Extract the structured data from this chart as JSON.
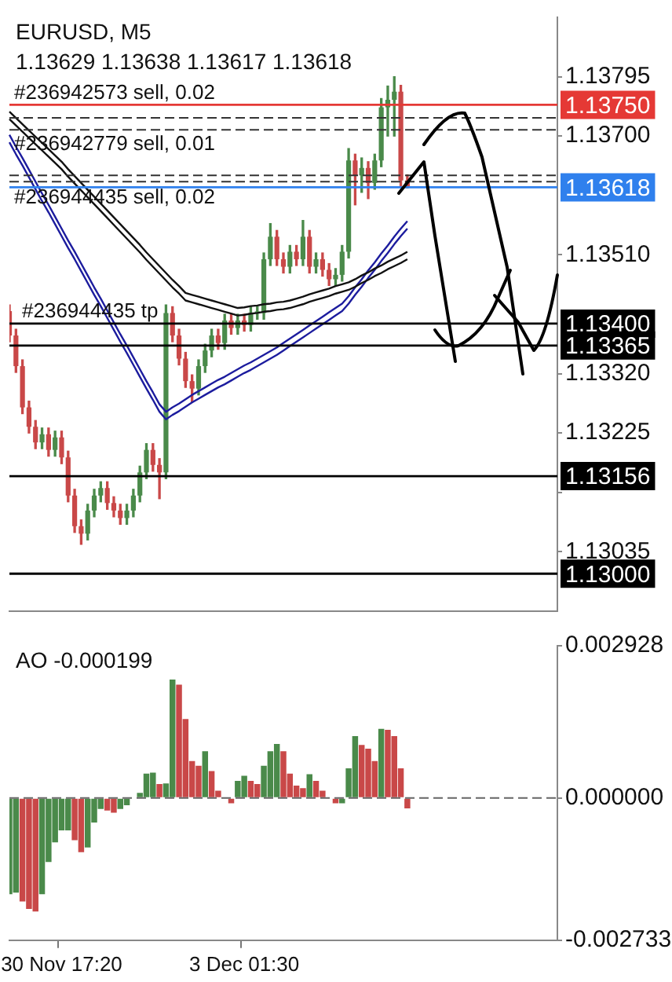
{
  "chart_data": [
    {
      "type": "candlestick",
      "title": "EURUSD, M5",
      "subtitle": "1.13629 1.13638 1.13617 1.13618",
      "tick_labels": "y",
      "categories": [
        null,
        null,
        null,
        null,
        null,
        null,
        null,
        null,
        null,
        null,
        null,
        null,
        null,
        null,
        null,
        null,
        null,
        null,
        null,
        null,
        null,
        null,
        null,
        null,
        null,
        null,
        null,
        null,
        null,
        null,
        null,
        null,
        null,
        null,
        null,
        null,
        null,
        null,
        null,
        null,
        null,
        null,
        null,
        null,
        null,
        null,
        null,
        null,
        null,
        null,
        null,
        null,
        null,
        null,
        null,
        null,
        null,
        null,
        null,
        null,
        null,
        null,
        null,
        null,
        null,
        null,
        null,
        null,
        null,
        null,
        null,
        null,
        null,
        null,
        null,
        null,
        null,
        null,
        null,
        null,
        null,
        null,
        null,
        null,
        null
      ],
      "ohlc": [
        [
          1.1342,
          1.1343,
          1.13371,
          1.13381
        ],
        [
          1.13381,
          1.13391,
          1.13322,
          1.13332
        ],
        [
          1.13332,
          1.13342,
          1.13256,
          1.13266
        ],
        [
          1.13266,
          1.13276,
          1.13225,
          1.13235
        ],
        [
          1.13235,
          1.13245,
          1.132,
          1.1321
        ],
        [
          1.1321,
          1.13233,
          1.132,
          1.13223
        ],
        [
          1.13223,
          1.13233,
          1.13188,
          1.13198
        ],
        [
          1.13198,
          1.13228,
          1.13188,
          1.13218
        ],
        [
          1.13218,
          1.13228,
          1.13176,
          1.13186
        ],
        [
          1.13186,
          1.13196,
          1.13115,
          1.13125
        ],
        [
          1.13125,
          1.13135,
          1.13066,
          1.13076
        ],
        [
          1.13076,
          1.13086,
          1.13047,
          1.13064
        ],
        [
          1.13064,
          1.13111,
          1.13054,
          1.13101
        ],
        [
          1.13101,
          1.13135,
          1.13091,
          1.13125
        ],
        [
          1.13125,
          1.13147,
          1.13115,
          1.13137
        ],
        [
          1.13137,
          1.13147,
          1.13103,
          1.13113
        ],
        [
          1.13113,
          1.13123,
          1.13091,
          1.13101
        ],
        [
          1.13101,
          1.13111,
          1.13079,
          1.13089
        ],
        [
          1.13089,
          1.13111,
          1.13079,
          1.13101
        ],
        [
          1.13101,
          1.13135,
          1.13091,
          1.13125
        ],
        [
          1.13125,
          1.13172,
          1.13115,
          1.13162
        ],
        [
          1.13162,
          1.13208,
          1.13152,
          1.13198
        ],
        [
          1.13198,
          1.13208,
          1.13164,
          1.13174
        ],
        [
          1.13174,
          1.13184,
          1.1312,
          1.13162
        ],
        [
          1.13162,
          1.1343,
          1.13152,
          1.13417
        ],
        [
          1.13417,
          1.13427,
          1.13371,
          1.13381
        ],
        [
          1.13381,
          1.13391,
          1.13334,
          1.13344
        ],
        [
          1.13344,
          1.13354,
          1.13298,
          1.13308
        ],
        [
          1.13308,
          1.13318,
          1.13275,
          1.13296
        ],
        [
          1.13296,
          1.13342,
          1.13286,
          1.13332
        ],
        [
          1.13332,
          1.13367,
          1.13322,
          1.13357
        ],
        [
          1.13357,
          1.13391,
          1.13347,
          1.13381
        ],
        [
          1.13381,
          1.13391,
          1.13359,
          1.13369
        ],
        [
          1.13369,
          1.13415,
          1.13359,
          1.13405
        ],
        [
          1.13405,
          1.13415,
          1.13383,
          1.13393
        ],
        [
          1.13393,
          1.13415,
          1.13383,
          1.13405
        ],
        [
          1.13405,
          1.13415,
          1.13388,
          1.13398
        ],
        [
          1.13398,
          1.13427,
          1.13388,
          1.13417
        ],
        [
          1.13417,
          1.13427,
          1.13407,
          1.13417
        ],
        [
          1.13417,
          1.13513,
          1.13407,
          1.13503
        ],
        [
          1.13503,
          1.1356,
          1.13493,
          1.13539
        ],
        [
          1.13539,
          1.13549,
          1.13493,
          1.13503
        ],
        [
          1.13503,
          1.13513,
          1.13481,
          1.13491
        ],
        [
          1.13491,
          1.13525,
          1.13481,
          1.13515
        ],
        [
          1.13515,
          1.13525,
          1.13493,
          1.13503
        ],
        [
          1.13503,
          1.13565,
          1.13493,
          1.13539
        ],
        [
          1.13539,
          1.13549,
          1.13481,
          1.13491
        ],
        [
          1.13491,
          1.13513,
          1.13481,
          1.13503
        ],
        [
          1.13503,
          1.13513,
          1.13476,
          1.13486
        ],
        [
          1.13486,
          1.13496,
          1.13461,
          1.13471
        ],
        [
          1.13471,
          1.13488,
          1.13461,
          1.13478
        ],
        [
          1.13478,
          1.13525,
          1.13468,
          1.13515
        ],
        [
          1.13515,
          1.1368,
          1.13505,
          1.13661
        ],
        [
          1.13661,
          1.13671,
          1.1359,
          1.13637
        ],
        [
          1.13637,
          1.13665,
          1.1361,
          1.13649
        ],
        [
          1.13649,
          1.13659,
          1.136,
          1.13625
        ],
        [
          1.13625,
          1.13671,
          1.13615,
          1.13661
        ],
        [
          1.13661,
          1.1376,
          1.13651,
          1.13746
        ],
        [
          1.13746,
          1.1378,
          1.137,
          1.13758
        ],
        [
          1.13758,
          1.13795,
          1.137,
          1.13771
        ],
        [
          1.13771,
          1.13781,
          1.13619,
          1.13629
        ],
        [
          1.13629,
          1.13638,
          1.13617,
          1.13618
        ],
        null,
        null,
        null,
        null,
        null,
        null,
        null,
        null,
        null,
        null,
        null,
        null,
        null,
        null,
        null,
        null,
        null,
        null,
        null,
        null,
        null,
        null,
        null
      ],
      "series": [
        {
          "type": "line",
          "color": "#111111",
          "values": [
            1.13739,
            1.13729,
            1.13719,
            1.13709,
            1.13699,
            1.13689,
            1.13679,
            1.13669,
            1.13659,
            1.13647,
            1.13636,
            1.13625,
            1.13614,
            1.13603,
            1.13592,
            1.13581,
            1.1357,
            1.13559,
            1.13548,
            1.13537,
            1.13526,
            1.13514,
            1.13503,
            1.13492,
            1.13481,
            1.1347,
            1.1346,
            1.13449,
            1.13446,
            1.13443,
            1.1344,
            1.13437,
            1.13434,
            1.13431,
            1.13428,
            1.13425,
            1.13426,
            1.13428,
            1.13429,
            1.13431,
            1.13432,
            1.13434,
            1.13435,
            1.13437,
            1.1344,
            1.13443,
            1.13447,
            1.1345,
            1.13453,
            1.13456,
            1.1346,
            1.13463,
            1.13466,
            1.13471,
            1.13477,
            1.13482,
            1.13488,
            1.13493,
            1.13499,
            1.13504,
            1.13509,
            1.13515,
            null,
            null,
            null,
            null,
            null,
            null,
            null,
            null,
            null,
            null,
            null,
            null,
            null,
            null,
            null,
            null,
            null,
            null,
            null,
            null,
            null,
            null,
            null
          ]
        },
        {
          "type": "line",
          "color": "#111111",
          "values": [
            1.13727,
            1.13717,
            1.13707,
            1.13697,
            1.13687,
            1.13677,
            1.13667,
            1.13657,
            1.13647,
            1.13635,
            1.13624,
            1.13613,
            1.13602,
            1.13591,
            1.1358,
            1.13569,
            1.13558,
            1.13547,
            1.13536,
            1.13525,
            1.13514,
            1.13502,
            1.13491,
            1.1348,
            1.13469,
            1.13458,
            1.13448,
            1.13437,
            1.13434,
            1.13431,
            1.13428,
            1.13425,
            1.13422,
            1.13419,
            1.13416,
            1.13413,
            1.13414,
            1.13416,
            1.13417,
            1.13419,
            1.1342,
            1.13422,
            1.13423,
            1.13425,
            1.13428,
            1.13431,
            1.13435,
            1.13438,
            1.13441,
            1.13444,
            1.13448,
            1.13451,
            1.13454,
            1.13459,
            1.13465,
            1.1347,
            1.13476,
            1.13481,
            1.13487,
            1.13492,
            1.13497,
            1.13503,
            null,
            null,
            null,
            null,
            null,
            null,
            null,
            null,
            null,
            null,
            null,
            null,
            null,
            null,
            null,
            null,
            null,
            null,
            null,
            null,
            null,
            null,
            null
          ]
        },
        {
          "type": "line",
          "color": "#1c1c9e",
          "values": [
            1.13702,
            1.13683,
            1.13665,
            1.13646,
            1.13627,
            1.13608,
            1.1359,
            1.13571,
            1.13552,
            1.13533,
            1.13515,
            1.13496,
            1.13477,
            1.13458,
            1.1344,
            1.13421,
            1.13402,
            1.13383,
            1.13365,
            1.13346,
            1.13327,
            1.13308,
            1.1329,
            1.13271,
            1.13259,
            1.13266,
            1.13272,
            1.13279,
            1.13286,
            1.13292,
            1.13298,
            1.13304,
            1.1331,
            1.13315,
            1.13321,
            1.13327,
            1.13333,
            1.13338,
            1.13344,
            1.1335,
            1.13356,
            1.13362,
            1.13369,
            1.13376,
            1.13383,
            1.1339,
            1.13397,
            1.13404,
            1.13411,
            1.13418,
            1.13425,
            1.13432,
            1.13444,
            1.13458,
            1.13471,
            1.13485,
            1.13498,
            1.13512,
            1.13525,
            1.13539,
            1.13552,
            1.13564,
            null,
            null,
            null,
            null,
            null,
            null,
            null,
            null,
            null,
            null,
            null,
            null,
            null,
            null,
            null,
            null,
            null,
            null,
            null,
            null,
            null,
            null,
            null
          ]
        },
        {
          "type": "line",
          "color": "#1c1c9e",
          "values": [
            1.1369,
            1.13671,
            1.13653,
            1.13634,
            1.13615,
            1.13596,
            1.13578,
            1.13559,
            1.1354,
            1.13521,
            1.13503,
            1.13484,
            1.13465,
            1.13446,
            1.13428,
            1.13409,
            1.1339,
            1.13371,
            1.13353,
            1.13334,
            1.13315,
            1.13296,
            1.13278,
            1.13259,
            1.13247,
            1.13254,
            1.1326,
            1.13267,
            1.13274,
            1.1328,
            1.13286,
            1.13292,
            1.13298,
            1.13303,
            1.13309,
            1.13315,
            1.13321,
            1.13326,
            1.13332,
            1.13338,
            1.13344,
            1.1335,
            1.13357,
            1.13364,
            1.13371,
            1.13378,
            1.13385,
            1.13392,
            1.13399,
            1.13406,
            1.13413,
            1.1342,
            1.13432,
            1.13446,
            1.13459,
            1.13473,
            1.13486,
            1.135,
            1.13513,
            1.13527,
            1.1354,
            1.13552,
            null,
            null,
            null,
            null,
            null,
            null,
            null,
            null,
            null,
            null,
            null,
            null,
            null,
            null,
            null,
            null,
            null,
            null,
            null,
            null,
            null,
            null,
            null
          ]
        }
      ],
      "ylim": [
        1.1294,
        1.1389
      ],
      "yticks": [
        1.13795,
        {
          "value": 1.137,
          "label": "1.13700"
        },
        {
          "value": 1.1351,
          "label": "1.13510"
        },
        {
          "value": 1.1332,
          "label": "1.13320"
        },
        1.13225,
        {
          "value": 1.1313,
          "label": null
        },
        1.13035
      ],
      "ref_lines": [
        {
          "axis": "y",
          "value": 1.1375,
          "label": "1.13750",
          "color": "#e53935"
        },
        {
          "axis": "y",
          "value": 1.13729,
          "label": "#236942573 sell, 0.02",
          "color": "#333333",
          "line_style": "dashed"
        },
        {
          "axis": "y",
          "value": 1.1371,
          "label": "#236942779 sell, 0.01",
          "color": "#333333",
          "line_style": "dashed"
        },
        {
          "axis": "y",
          "value": 1.13637,
          "label": "#236944435 sell, 0.02",
          "color": "#333333",
          "line_style": "dashed"
        },
        {
          "axis": "y",
          "value": 1.13627,
          "color": "#333333",
          "line_style": "dashed"
        },
        {
          "axis": "y",
          "value": 1.13618,
          "label": "1.13618",
          "color": "#2f80ed"
        },
        {
          "axis": "y",
          "value": 1.134,
          "label": "1.13400",
          "color": "#000000"
        },
        {
          "axis": "y",
          "value": 1.13365,
          "label": "1.13365",
          "color": "#000000"
        },
        {
          "axis": "y",
          "value": 1.13156,
          "label": "1.13156",
          "color": "#000000"
        },
        {
          "axis": "y",
          "value": 1.13,
          "label": "1.13000",
          "color": "#000000"
        }
      ],
      "annotations": [
        {
          "text": "#236944435 tp",
          "y": 1.134
        }
      ]
    },
    {
      "type": "bar",
      "title": "AO -0.000199",
      "categories": [
        null,
        null,
        null,
        null,
        null,
        null,
        null,
        null,
        "30 Nov 17:20",
        null,
        null,
        null,
        null,
        null,
        null,
        null,
        null,
        null,
        null,
        null,
        null,
        null,
        null,
        null,
        null,
        null,
        null,
        null,
        null,
        null,
        null,
        null,
        null,
        null,
        null,
        null,
        "3 Dec 01:30",
        null,
        null,
        null,
        null,
        null,
        null,
        null,
        null,
        null,
        null,
        null,
        null,
        null,
        null,
        null,
        null,
        null,
        null,
        null,
        null,
        null,
        null,
        null,
        null,
        null,
        null,
        null,
        null,
        null,
        null,
        null,
        null,
        null,
        null,
        null,
        null,
        null,
        null,
        null,
        null,
        null,
        null,
        null,
        null,
        null,
        null,
        null,
        null
      ],
      "values": [
        -0.00185,
        -0.00182,
        -0.00199,
        -0.00213,
        -0.00218,
        -0.00185,
        -0.00123,
        -0.00085,
        -0.00062,
        -0.00062,
        -0.00081,
        -0.00104,
        -0.00095,
        -0.00047,
        -0.00021,
        -0.00024,
        -0.00028,
        -0.00021,
        -0.00014,
        0,
        0.0001,
        0.00047,
        0.00049,
        0.00027,
        0.00028,
        0.00228,
        0.00218,
        0.00152,
        0.00071,
        0.00062,
        0.0009,
        0.00052,
        0.00014,
        0,
        -0.0001,
        0.00033,
        0.00043,
        0.00033,
        0.00027,
        0.00062,
        0.0009,
        0.00104,
        0.0009,
        0.00047,
        0.00024,
        0.00019,
        0.00046,
        0.00033,
        0.00014,
        0,
        -0.0001,
        -0.0001,
        0.00057,
        0.00119,
        0.00102,
        0.00095,
        0.00071,
        0.00133,
        0.00131,
        0.00119,
        0.00057,
        -0.000199,
        null,
        null,
        null,
        null,
        null,
        null,
        null,
        null,
        null,
        null,
        null,
        null,
        null,
        null,
        null,
        null,
        null,
        null,
        null,
        null,
        null,
        null,
        null
      ],
      "colors": [
        "#4a8a4a",
        "#4a8a4a",
        "#c94848",
        "#c94848",
        "#c94848",
        "#4a8a4a",
        "#4a8a4a",
        "#4a8a4a",
        "#4a8a4a",
        "#4a8a4a",
        "#c94848",
        "#c94848",
        "#4a8a4a",
        "#4a8a4a",
        "#4a8a4a",
        "#c94848",
        "#c94848",
        "#4a8a4a",
        "#4a8a4a",
        "#4a8a4a",
        "#4a8a4a",
        "#4a8a4a",
        "#4a8a4a",
        "#c94848",
        "#4a8a4a",
        "#4a8a4a",
        "#c94848",
        "#c94848",
        "#c94848",
        "#c94848",
        "#4a8a4a",
        "#c94848",
        "#c94848",
        "#c94848",
        "#c94848",
        "#4a8a4a",
        "#4a8a4a",
        "#c94848",
        "#c94848",
        "#4a8a4a",
        "#4a8a4a",
        "#4a8a4a",
        "#c94848",
        "#c94848",
        "#c94848",
        "#c94848",
        "#4a8a4a",
        "#c94848",
        "#c94848",
        "#c94848",
        "#c94848",
        "#4a8a4a",
        "#4a8a4a",
        "#4a8a4a",
        "#c94848",
        "#c94848",
        "#c94848",
        "#4a8a4a",
        "#c94848",
        "#c94848",
        "#c94848",
        "#c94848",
        null,
        null,
        null,
        null,
        null,
        null,
        null,
        null,
        null,
        null,
        null,
        null,
        null,
        null,
        null,
        null,
        null,
        null,
        null,
        null,
        null,
        null,
        null
      ],
      "ylim": [
        -0.002733,
        0.002928
      ],
      "yticks": [
        0.002928,
        {
          "value": 0,
          "label": "0.000000"
        },
        -0.002733
      ],
      "ref_lines": [
        {
          "axis": "y",
          "value": 0,
          "color": "#666666",
          "line_style": "dashed"
        }
      ]
    }
  ]
}
